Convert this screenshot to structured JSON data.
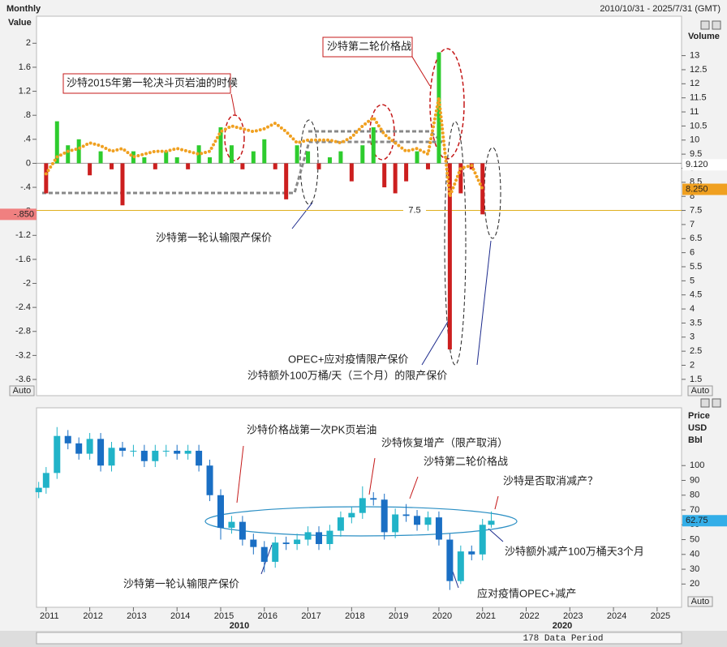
{
  "header": {
    "period": "Monthly",
    "range": "2010/10/31 - 2025/7/31 (GMT)",
    "scale_mode": "Auto"
  },
  "chart_data": [
    {
      "type": "bar_line",
      "y_label": "Value",
      "y2_label": "Volume",
      "x": [
        2011.0,
        2011.25,
        2011.5,
        2011.75,
        2012.0,
        2012.25,
        2012.5,
        2012.75,
        2013.0,
        2013.25,
        2013.5,
        2013.75,
        2014.0,
        2014.25,
        2014.5,
        2014.75,
        2015.0,
        2015.25,
        2015.5,
        2015.75,
        2016.0,
        2016.25,
        2016.5,
        2016.75,
        2017.0,
        2017.25,
        2017.5,
        2017.75,
        2018.0,
        2018.25,
        2018.5,
        2018.75,
        2019.0,
        2019.25,
        2019.5,
        2019.75,
        2020.0,
        2020.25,
        2020.5,
        2020.75,
        2021.0
      ],
      "series": [
        {
          "type": "bar",
          "up_color": "#2ecc2e",
          "down_color": "#cc1f1f",
          "values": [
            -0.5,
            0.7,
            0.3,
            0.4,
            -0.2,
            0.2,
            -0.1,
            -0.7,
            0.2,
            0.1,
            -0.1,
            0.2,
            0.1,
            -0.1,
            0.3,
            0.1,
            0.6,
            0.3,
            -0.1,
            0.2,
            0.4,
            -0.1,
            -0.6,
            0.3,
            0.2,
            -0.1,
            0.1,
            0.2,
            -0.3,
            0.3,
            0.6,
            -0.4,
            -0.5,
            -0.3,
            0.2,
            -0.1,
            1.85,
            -3.1,
            -0.5,
            -0.1,
            -0.85
          ]
        },
        {
          "type": "line",
          "axis": "y2",
          "color": "#f0a020",
          "values": [
            8.8,
            9.4,
            9.6,
            9.7,
            9.9,
            9.8,
            9.6,
            9.7,
            9.4,
            9.5,
            9.6,
            9.6,
            9.7,
            9.6,
            9.5,
            9.6,
            10.3,
            10.5,
            10.4,
            10.3,
            10.4,
            10.6,
            10.3,
            9.9,
            10.0,
            10.0,
            10.0,
            9.9,
            10.1,
            10.5,
            10.8,
            10.2,
            9.9,
            9.6,
            9.7,
            9.5,
            11.5,
            8.0,
            9.0,
            9.1,
            8.25
          ]
        }
      ],
      "xlim": [
        2010.78,
        2025.56
      ],
      "ylim": [
        -3.87,
        2.45
      ],
      "yticks": [
        2,
        1.6,
        1.2,
        {
          "value": 0.8,
          "label": ".8"
        },
        {
          "value": 0.4,
          "label": ".4"
        },
        0,
        {
          "value": -0.4,
          "label": "-.4"
        },
        {
          "value": -0.8,
          "label": "-.8"
        },
        -1.2,
        -1.6,
        -2,
        -2.4,
        -2.8,
        -3.2,
        -3.6
      ],
      "y2lim": [
        0.92,
        14.4
      ],
      "y2ticks": [
        1.5,
        2,
        2.5,
        3,
        3.5,
        4,
        4.5,
        5,
        5.5,
        6,
        6.5,
        7,
        7.5,
        8,
        8.5,
        9,
        9.5,
        10,
        10.5,
        11,
        11.5,
        12,
        12.5,
        13
      ],
      "hline": 7.5,
      "last_value_label": {
        "value": -0.85,
        "label": "-.850"
      },
      "y2_markers": [
        {
          "value": 9.12,
          "label": "9.120",
          "color": "#ffffff"
        },
        {
          "value": 8.25,
          "label": "8.250",
          "color": "#f0a020"
        }
      ],
      "annotations": [
        "沙特2015年第一轮决斗页岩油的时候",
        "沙特第二轮价格战",
        "沙特第一轮认输限产保价",
        "OPEC+应对疫情限产保价",
        "沙特额外100万桶/天（三个月）的限产保价"
      ]
    },
    {
      "type": "candlestick",
      "y_label": [
        "Price",
        "USD",
        "Bbl"
      ],
      "up_color": "#21b3c8",
      "down_color": "#1a6fc4",
      "x": [
        2010.83,
        2011.0,
        2011.25,
        2011.5,
        2011.75,
        2012.0,
        2012.25,
        2012.5,
        2012.75,
        2013.0,
        2013.25,
        2013.5,
        2013.75,
        2014.0,
        2014.25,
        2014.5,
        2014.75,
        2015.0,
        2015.25,
        2015.5,
        2015.75,
        2016.0,
        2016.25,
        2016.5,
        2016.75,
        2017.0,
        2017.25,
        2017.5,
        2017.75,
        2018.0,
        2018.25,
        2018.5,
        2018.75,
        2019.0,
        2019.25,
        2019.5,
        2019.75,
        2020.0,
        2020.25,
        2020.5,
        2020.75,
        2021.0,
        2021.2
      ],
      "open": [
        82,
        85,
        95,
        120,
        115,
        108,
        118,
        100,
        112,
        110,
        110,
        103,
        110,
        110,
        108,
        110,
        100,
        80,
        58,
        62,
        50,
        45,
        35,
        48,
        47,
        50,
        55,
        47,
        56,
        65,
        68,
        78,
        77,
        55,
        67,
        66,
        60,
        65,
        50,
        22,
        42,
        40,
        60
      ],
      "high": [
        89,
        99,
        126,
        124,
        119,
        122,
        122,
        116,
        116,
        114,
        114,
        114,
        114,
        114,
        114,
        114,
        104,
        84,
        66,
        66,
        54,
        49,
        52,
        52,
        54,
        59,
        59,
        60,
        69,
        72,
        86,
        82,
        81,
        71,
        74,
        70,
        69,
        69,
        54,
        46,
        46,
        64,
        69
      ],
      "low": [
        78,
        81,
        91,
        111,
        104,
        104,
        96,
        96,
        106,
        106,
        99,
        99,
        106,
        104,
        104,
        96,
        76,
        50,
        54,
        46,
        40,
        28,
        31,
        43,
        43,
        46,
        43,
        43,
        52,
        61,
        64,
        73,
        50,
        51,
        62,
        56,
        56,
        46,
        16,
        20,
        36,
        36,
        58
      ],
      "close": [
        85,
        95,
        120,
        115,
        108,
        118,
        100,
        112,
        110,
        110,
        103,
        110,
        110,
        108,
        110,
        100,
        80,
        58,
        62,
        50,
        45,
        35,
        48,
        47,
        50,
        55,
        47,
        56,
        65,
        68,
        78,
        77,
        55,
        67,
        66,
        60,
        65,
        50,
        22,
        42,
        40,
        60,
        62.75
      ],
      "last_value_label": {
        "value": 62.75,
        "label": "62.75"
      },
      "xlim": [
        2010.78,
        2025.56
      ],
      "ylim": [
        4.3,
        139
      ],
      "xticks": [
        2011,
        2012,
        2013,
        2014,
        2015,
        2016,
        2017,
        2018,
        2019,
        2020,
        2021,
        2022,
        2023,
        2024,
        2025
      ],
      "yticks": [
        20,
        30,
        40,
        50,
        60,
        70,
        80,
        90,
        100
      ],
      "annotations": [
        "沙特价格战第一次PK页岩油",
        "沙特恢复增产（限产取消）",
        "沙特第二轮价格战",
        "沙特是否取消减产？",
        "沙特额外减产100万桶天3个月",
        "沙特第一轮认输限产保价",
        "应对疫情OPEC+减产"
      ]
    }
  ],
  "scrollbar": {
    "years": [
      2010,
      2020
    ],
    "period": "178 Data Period"
  }
}
